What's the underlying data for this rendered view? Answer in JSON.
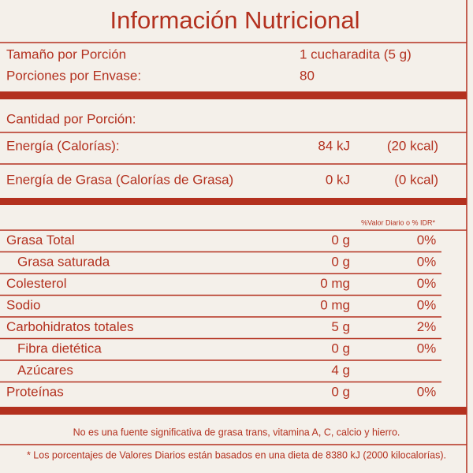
{
  "header": {
    "title": "Información Nutricional"
  },
  "serving": [
    {
      "label": "Tamaño por Porción",
      "value": "1 cucharadita (5 g)"
    },
    {
      "label": "Porciones por Envase:",
      "value": "80"
    }
  ],
  "amount_header": "Cantidad por Porción:",
  "energy": [
    {
      "label": "Energía (Calorías):",
      "kj": "84 kJ",
      "kcal": "(20 kcal)"
    },
    {
      "label": "Energía de Grasa (Calorías de Grasa)",
      "kj": "0 kJ",
      "kcal": "(0 kcal)"
    }
  ],
  "dv_header": "%Valor Diario o % IDR*",
  "table": {
    "rows": [
      {
        "name": "Grasa Total",
        "amount": "0 g",
        "percent": "0%"
      },
      {
        "name": "Grasa saturada",
        "amount": "0 g",
        "percent": "0%",
        "indent": true
      },
      {
        "name": "Colesterol",
        "amount": "0 mg",
        "percent": "0%"
      },
      {
        "name": "Sodio",
        "amount": "0 mg",
        "percent": "0%"
      },
      {
        "name": "Carbohidratos totales",
        "amount": "5 g",
        "percent": "2%"
      },
      {
        "name": "Fibra dietética",
        "amount": "0 g",
        "percent": "0%",
        "indent": true
      },
      {
        "name": "Azúcares",
        "amount": "4 g",
        "indent": true
      },
      {
        "name": "Proteínas",
        "amount": "0 g",
        "percent": "0%"
      }
    ]
  },
  "footnotes": [
    "No es una fuente significativa de grasa trans, vitamina A, C, calcio y hierro.",
    "* Los porcentajes de Valores Diarios están basados en una dieta de 8380 kJ (2000 kilocalorías)."
  ]
}
